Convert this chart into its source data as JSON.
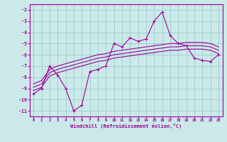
{
  "x": [
    0,
    1,
    2,
    3,
    4,
    5,
    6,
    7,
    8,
    9,
    10,
    11,
    12,
    13,
    14,
    15,
    16,
    17,
    18,
    19,
    20,
    21,
    22,
    23
  ],
  "main_line": [
    -9.5,
    -9.0,
    -7.0,
    -7.8,
    -9.0,
    -11.0,
    -10.5,
    -7.5,
    -7.3,
    -7.0,
    -5.0,
    -5.3,
    -4.5,
    -4.8,
    -4.6,
    -3.0,
    -2.2,
    -4.3,
    -5.0,
    -5.2,
    -6.3,
    -6.5,
    -6.6,
    -6.0
  ],
  "trend_hi": [
    -8.6,
    -8.3,
    -7.3,
    -7.0,
    -6.8,
    -6.6,
    -6.4,
    -6.2,
    -6.0,
    -5.9,
    -5.7,
    -5.6,
    -5.5,
    -5.4,
    -5.3,
    -5.2,
    -5.1,
    -5.0,
    -5.0,
    -4.9,
    -4.9,
    -4.9,
    -5.0,
    -5.3
  ],
  "trend_mid": [
    -8.9,
    -8.6,
    -7.6,
    -7.3,
    -7.1,
    -6.9,
    -6.7,
    -6.5,
    -6.3,
    -6.2,
    -6.0,
    -5.9,
    -5.8,
    -5.7,
    -5.6,
    -5.5,
    -5.4,
    -5.3,
    -5.3,
    -5.2,
    -5.2,
    -5.2,
    -5.3,
    -5.6
  ],
  "trend_lo": [
    -9.2,
    -8.9,
    -7.9,
    -7.6,
    -7.4,
    -7.2,
    -7.0,
    -6.8,
    -6.6,
    -6.5,
    -6.3,
    -6.2,
    -6.1,
    -6.0,
    -5.9,
    -5.8,
    -5.7,
    -5.6,
    -5.6,
    -5.5,
    -5.5,
    -5.5,
    -5.6,
    -5.9
  ],
  "bg_color": "#cce9e9",
  "line_color": "#990099",
  "grid_color": "#99cccc",
  "xlabel": "Windchill (Refroidissement éolien,°C)",
  "ylim": [
    -11.5,
    -1.5
  ],
  "xlim": [
    -0.5,
    23.5
  ],
  "yticks": [
    -2,
    -3,
    -4,
    -5,
    -6,
    -7,
    -8,
    -9,
    -10,
    -11
  ],
  "xticks": [
    0,
    1,
    2,
    3,
    4,
    5,
    6,
    7,
    8,
    9,
    10,
    11,
    12,
    13,
    14,
    15,
    16,
    17,
    18,
    19,
    20,
    21,
    22,
    23
  ]
}
